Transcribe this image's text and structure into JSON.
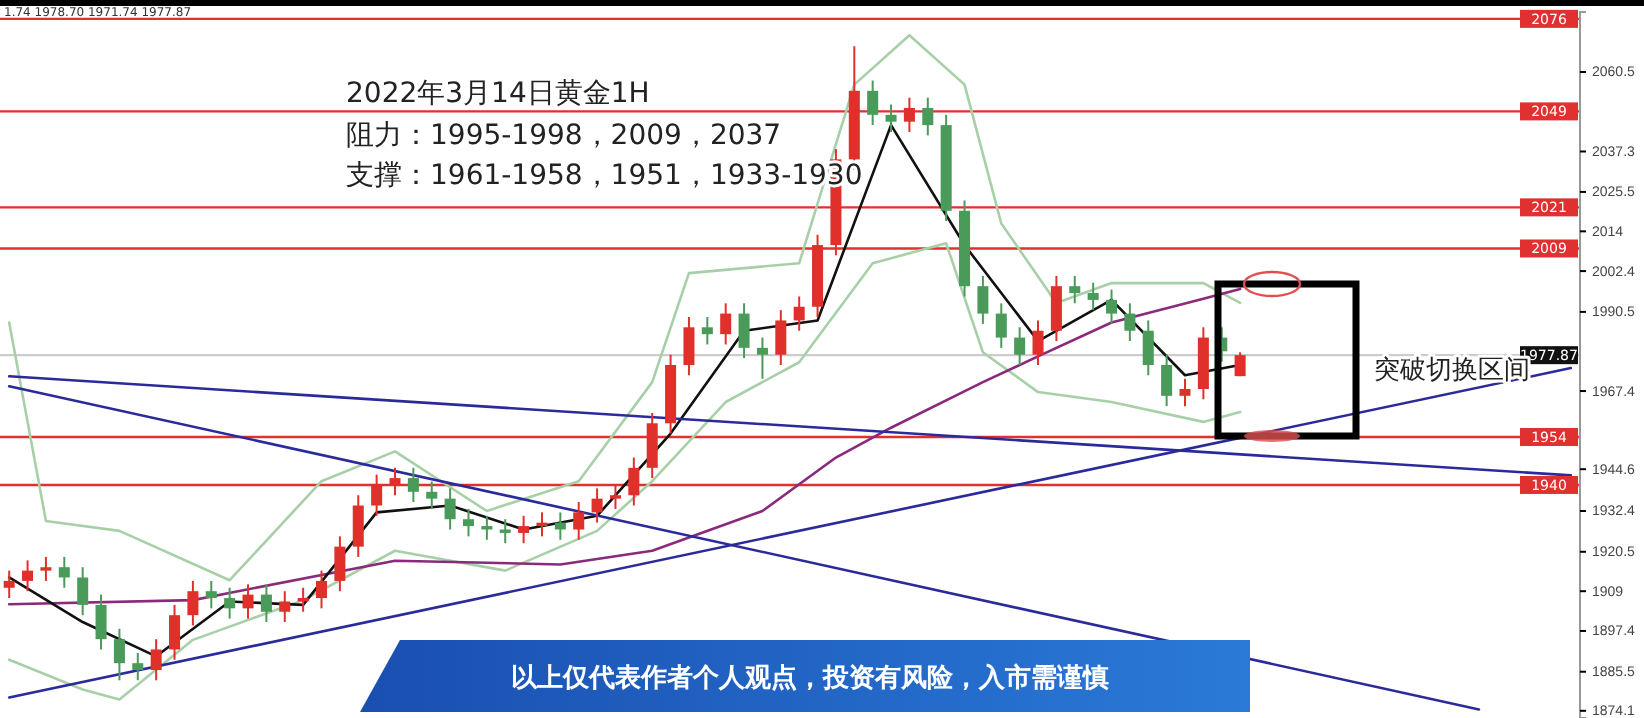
{
  "chart_data": {
    "type": "candlestick",
    "title": "2022年3月14日黄金1H",
    "annotations": [
      "1.74 1978.70 1971.74 1977.87",
      "阻力：1995-1998，2009，2037",
      "支撑：1961-1958，1951，1933-1930",
      "突破切换区间",
      "以上仅代表作者个人观点，投资有风险，入市需谨慎"
    ],
    "categories": [
      null,
      null,
      null,
      null,
      null,
      null,
      null,
      null,
      null,
      null,
      null,
      null,
      null,
      null,
      null,
      null,
      null,
      null,
      null,
      null,
      null,
      null,
      null,
      null,
      null,
      null,
      null,
      null,
      null,
      null,
      null,
      null,
      null,
      null,
      null,
      null,
      null,
      null,
      null,
      null,
      null,
      null,
      null,
      null,
      null,
      null,
      null,
      null,
      null,
      null,
      null,
      null,
      null,
      null,
      null,
      null,
      null,
      null,
      null,
      null,
      null,
      null,
      null,
      null,
      null,
      null,
      null,
      null,
      null,
      null,
      null,
      null,
      null,
      null,
      null,
      null,
      null,
      null,
      null,
      null,
      null,
      null,
      null,
      null,
      null,
      null
    ],
    "ohlc": [
      [
        1910,
        1915,
        1907,
        1912
      ],
      [
        1912,
        1918,
        1909,
        1915
      ],
      [
        1915,
        1919,
        1912,
        1916
      ],
      [
        1916,
        1919,
        1910,
        1913
      ],
      [
        1913,
        1916,
        1902,
        1905
      ],
      [
        1905,
        1908,
        1892,
        1895
      ],
      [
        1895,
        1898,
        1883,
        1888
      ],
      [
        1888,
        1891,
        1883,
        1886
      ],
      [
        1886,
        1895,
        1883,
        1892
      ],
      [
        1892,
        1905,
        1889,
        1902
      ],
      [
        1902,
        1912,
        1899,
        1909
      ],
      [
        1909,
        1912,
        1904,
        1907
      ],
      [
        1907,
        1910,
        1901,
        1904
      ],
      [
        1904,
        1911,
        1901,
        1908
      ],
      [
        1908,
        1911,
        1900,
        1903
      ],
      [
        1903,
        1909,
        1900,
        1906
      ],
      [
        1906,
        1910,
        1903,
        1907
      ],
      [
        1907,
        1915,
        1904,
        1912
      ],
      [
        1912,
        1925,
        1909,
        1922
      ],
      [
        1922,
        1937,
        1919,
        1934
      ],
      [
        1934,
        1943,
        1931,
        1940
      ],
      [
        1940,
        1945,
        1937,
        1942
      ],
      [
        1942,
        1945,
        1935,
        1938
      ],
      [
        1938,
        1941,
        1933,
        1936
      ],
      [
        1936,
        1939,
        1927,
        1930
      ],
      [
        1930,
        1933,
        1925,
        1928
      ],
      [
        1928,
        1931,
        1924,
        1927
      ],
      [
        1927,
        1930,
        1923,
        1926
      ],
      [
        1926,
        1931,
        1923,
        1928
      ],
      [
        1928,
        1932,
        1925,
        1929
      ],
      [
        1929,
        1932,
        1924,
        1927
      ],
      [
        1927,
        1935,
        1924,
        1932
      ],
      [
        1932,
        1939,
        1929,
        1936
      ],
      [
        1936,
        1940,
        1933,
        1937
      ],
      [
        1937,
        1948,
        1934,
        1945
      ],
      [
        1945,
        1961,
        1942,
        1958
      ],
      [
        1958,
        1978,
        1955,
        1975
      ],
      [
        1975,
        1989,
        1972,
        1986
      ],
      [
        1986,
        1989,
        1981,
        1984
      ],
      [
        1984,
        1993,
        1981,
        1990
      ],
      [
        1990,
        1993,
        1977,
        1980
      ],
      [
        1980,
        1983,
        1971,
        1978
      ],
      [
        1978,
        1991,
        1975,
        1988
      ],
      [
        1988,
        1995,
        1985,
        1992
      ],
      [
        1992,
        2013,
        1989,
        2010
      ],
      [
        2010,
        2038,
        2007,
        2035
      ],
      [
        2035,
        2068,
        2032,
        2055
      ],
      [
        2055,
        2058,
        2045,
        2048
      ],
      [
        2048,
        2051,
        2043,
        2046
      ],
      [
        2046,
        2053,
        2043,
        2050
      ],
      [
        2050,
        2053,
        2042,
        2045
      ],
      [
        2045,
        2048,
        2017,
        2020
      ],
      [
        2020,
        2023,
        1995,
        1998
      ],
      [
        1998,
        2001,
        1987,
        1990
      ],
      [
        1990,
        1993,
        1980,
        1983
      ],
      [
        1983,
        1986,
        1975,
        1978
      ],
      [
        1978,
        1988,
        1975,
        1985
      ],
      [
        1985,
        2001,
        1982,
        1998
      ],
      [
        1998,
        2001,
        1993,
        1996
      ],
      [
        1996,
        1999,
        1991,
        1994
      ],
      [
        1994,
        1997,
        1987,
        1990
      ],
      [
        1990,
        1993,
        1982,
        1985
      ],
      [
        1985,
        1988,
        1972,
        1975
      ],
      [
        1975,
        1978,
        1963,
        1966
      ],
      [
        1966,
        1971,
        1963,
        1968
      ],
      [
        1968,
        1986,
        1965,
        1983
      ],
      [
        1983,
        1986,
        1976,
        1979
      ],
      [
        1971.74,
        1978.7,
        1971.74,
        1977.87
      ],
      null,
      null,
      null,
      null,
      null,
      null,
      null,
      null,
      null,
      null,
      null,
      null,
      null,
      null,
      null,
      null,
      null,
      null
    ],
    "colors": [
      "#e0302c",
      "#e0302c",
      "#e0302c",
      "#4a9a5a",
      "#4a9a5a",
      "#4a9a5a",
      "#4a9a5a",
      "#4a9a5a",
      "#e0302c",
      "#e0302c",
      "#e0302c",
      "#4a9a5a",
      "#4a9a5a",
      "#e0302c",
      "#4a9a5a",
      "#e0302c",
      "#e0302c",
      "#e0302c",
      "#e0302c",
      "#e0302c",
      "#e0302c",
      "#e0302c",
      "#4a9a5a",
      "#4a9a5a",
      "#4a9a5a",
      "#4a9a5a",
      "#4a9a5a",
      "#4a9a5a",
      "#e0302c",
      "#e0302c",
      "#4a9a5a",
      "#e0302c",
      "#e0302c",
      "#e0302c",
      "#e0302c",
      "#e0302c",
      "#e0302c",
      "#e0302c",
      "#4a9a5a",
      "#e0302c",
      "#4a9a5a",
      "#4a9a5a",
      "#e0302c",
      "#e0302c",
      "#e0302c",
      "#e0302c",
      "#e0302c",
      "#4a9a5a",
      "#4a9a5a",
      "#e0302c",
      "#4a9a5a",
      "#4a9a5a",
      "#4a9a5a",
      "#4a9a5a",
      "#4a9a5a",
      "#4a9a5a",
      "#e0302c",
      "#e0302c",
      "#4a9a5a",
      "#4a9a5a",
      "#4a9a5a",
      "#4a9a5a",
      "#4a9a5a",
      "#4a9a5a",
      "#e0302c",
      "#e0302c",
      "#4a9a5a",
      "#e0302c",
      null,
      null,
      null,
      null,
      null,
      null,
      null,
      null,
      null,
      null,
      null,
      null,
      null,
      null,
      null,
      null,
      null,
      null
    ],
    "series": [
      {
        "type": "line",
        "color": "#a8d0a8",
        "values": [
          1987.4,
          null,
          1929.5,
          null,
          null,
          null,
          1926.6,
          null,
          null,
          null,
          null,
          null,
          1912.2,
          null,
          null,
          null,
          null,
          1941.1,
          null,
          null,
          null,
          1949.8,
          null,
          null,
          null,
          null,
          1932.4,
          null,
          null,
          null,
          null,
          1941.1,
          null,
          null,
          null,
          1970.0,
          null,
          2001.8,
          null,
          null,
          null,
          null,
          null,
          2004.7,
          null,
          null,
          2056.8,
          null,
          null,
          2071.2,
          null,
          null,
          2056.8,
          null,
          2016.3,
          null,
          null,
          1993.1,
          null,
          null,
          1998.9,
          null,
          null,
          null,
          null,
          1998.9,
          null,
          1993.1,
          null,
          null,
          null,
          null,
          null,
          null,
          null,
          null,
          null,
          null,
          null,
          null,
          null,
          null,
          null,
          null,
          null,
          null
        ]
      },
      {
        "type": "line",
        "color": "#a8d0a8",
        "values": [
          1889.0,
          null,
          null,
          null,
          1880.3,
          null,
          1877.4,
          null,
          null,
          null,
          1894.8,
          null,
          null,
          null,
          null,
          null,
          1906.4,
          null,
          null,
          null,
          null,
          1920.8,
          null,
          null,
          null,
          null,
          null,
          1915.0,
          null,
          null,
          null,
          null,
          1926.6,
          null,
          null,
          1941.1,
          null,
          null,
          null,
          1964.2,
          null,
          null,
          null,
          1975.8,
          null,
          null,
          null,
          2004.7,
          null,
          null,
          null,
          2010.5,
          null,
          1978.7,
          null,
          null,
          1967.1,
          null,
          null,
          null,
          1964.2,
          null,
          null,
          null,
          null,
          1958.4,
          null,
          1961.3,
          null,
          null,
          null,
          null,
          null,
          null,
          null,
          null,
          null,
          null,
          null,
          null,
          null,
          null,
          null,
          null,
          null,
          null
        ]
      },
      {
        "type": "line",
        "color": "#8a2a7a",
        "values": [
          1905.2,
          null,
          null,
          null,
          null,
          null,
          null,
          null,
          null,
          null,
          1906.4,
          null,
          null,
          null,
          null,
          null,
          null,
          null,
          null,
          null,
          null,
          1917.9,
          null,
          null,
          null,
          null,
          null,
          null,
          null,
          null,
          1916.8,
          null,
          null,
          null,
          null,
          1920.8,
          null,
          null,
          null,
          null,
          null,
          1932.4,
          null,
          null,
          null,
          1948.0,
          null,
          null,
          1956.7,
          null,
          null,
          null,
          null,
          1970.0,
          null,
          null,
          1977.5,
          null,
          null,
          null,
          1987.4,
          null,
          null,
          null,
          null,
          1994.3,
          null,
          1997.2,
          null,
          null,
          null,
          null,
          null,
          null,
          null,
          null,
          null,
          null,
          null,
          null,
          null,
          null,
          null,
          null,
          null,
          null
        ]
      },
      {
        "type": "line",
        "color": "#111111",
        "values": [
          1913,
          null,
          null,
          null,
          1900,
          null,
          null,
          null,
          1890,
          null,
          null,
          null,
          1906,
          null,
          null,
          null,
          1905,
          null,
          null,
          null,
          1932,
          null,
          null,
          null,
          1934,
          null,
          null,
          null,
          1927,
          null,
          null,
          null,
          1931,
          null,
          null,
          null,
          1955,
          null,
          null,
          null,
          1985,
          null,
          null,
          null,
          1988,
          null,
          null,
          null,
          2045,
          null,
          null,
          null,
          2010,
          null,
          null,
          null,
          1982,
          null,
          null,
          null,
          1994,
          null,
          null,
          null,
          1972,
          null,
          null,
          1975,
          null,
          null,
          null,
          null,
          null,
          null,
          null,
          null,
          null,
          null,
          null,
          null,
          null,
          null,
          null,
          null,
          null,
          null
        ]
      },
      {
        "type": "line",
        "color": "#2a2a9a",
        "values": [
          1971.7,
          null,
          null,
          null,
          null,
          null,
          null,
          null,
          null,
          null,
          null,
          null,
          null,
          null,
          null,
          null,
          null,
          null,
          null,
          null,
          null,
          null,
          null,
          null,
          null,
          null,
          null,
          null,
          null,
          null,
          null,
          null,
          null,
          null,
          null,
          null,
          null,
          null,
          null,
          null,
          null,
          null,
          null,
          null,
          null,
          null,
          null,
          null,
          null,
          null,
          null,
          null,
          null,
          null,
          null,
          null,
          null,
          null,
          null,
          null,
          null,
          null,
          null,
          null,
          null,
          null,
          null,
          null,
          null,
          null,
          null,
          null,
          null,
          null,
          null,
          null,
          null,
          null,
          null,
          null,
          null,
          null,
          null,
          null,
          null,
          1942.8
        ]
      },
      {
        "type": "line",
        "color": "#2a2a9a",
        "values": [
          1968.8,
          null,
          null,
          null,
          null,
          null,
          null,
          null,
          null,
          null,
          null,
          null,
          null,
          null,
          null,
          null,
          null,
          null,
          null,
          null,
          null,
          null,
          null,
          null,
          null,
          null,
          null,
          null,
          null,
          null,
          null,
          null,
          null,
          null,
          null,
          null,
          null,
          null,
          null,
          null,
          null,
          null,
          null,
          null,
          null,
          null,
          null,
          null,
          null,
          null,
          null,
          null,
          null,
          null,
          null,
          null,
          null,
          null,
          null,
          null,
          null,
          null,
          null,
          null,
          null,
          null,
          null,
          null,
          null,
          null,
          null,
          null,
          null,
          null,
          null,
          null,
          null,
          null,
          null,
          null,
          1874.5,
          null,
          null,
          null,
          null,
          null
        ]
      },
      {
        "type": "line",
        "color": "#2a2a9a",
        "values": [
          1878.0,
          null,
          null,
          null,
          null,
          null,
          null,
          null,
          null,
          null,
          null,
          null,
          null,
          null,
          null,
          null,
          null,
          null,
          null,
          null,
          null,
          null,
          null,
          null,
          null,
          null,
          null,
          null,
          null,
          null,
          null,
          null,
          null,
          null,
          null,
          null,
          null,
          null,
          null,
          null,
          null,
          null,
          null,
          null,
          null,
          null,
          null,
          null,
          null,
          null,
          null,
          null,
          null,
          null,
          null,
          null,
          null,
          null,
          null,
          null,
          null,
          null,
          null,
          null,
          null,
          null,
          null,
          null,
          null,
          null,
          null,
          null,
          null,
          null,
          null,
          null,
          null,
          null,
          null,
          null,
          null,
          null,
          null,
          null,
          null,
          1974.1
        ]
      }
    ],
    "ylim": [
      1872,
      2078
    ],
    "yticks": [
      2060.5,
      2037.3,
      2025.5,
      2014.0,
      2002.4,
      1990.5,
      1967.4,
      1944.6,
      1932.4,
      1920.5,
      1909.0,
      1897.4,
      1885.5,
      1874.1
    ],
    "tick_labels": "y",
    "ref_lines": [
      {
        "axis": "y",
        "value": 2076,
        "label": "2076",
        "color": "#e03030"
      },
      {
        "axis": "y",
        "value": 2049,
        "label": "2049",
        "color": "#e03030"
      },
      {
        "axis": "y",
        "value": 2021,
        "label": "2021",
        "color": "#e03030"
      },
      {
        "axis": "y",
        "value": 2009,
        "label": "2009",
        "color": "#e03030"
      },
      {
        "axis": "y",
        "value": 1977.87,
        "label": "1977.87",
        "color": "#cccccc"
      },
      {
        "axis": "y",
        "value": 1954,
        "label": "1954",
        "color": "#e03030"
      },
      {
        "axis": "y",
        "value": 1940,
        "label": "1940",
        "color": "#e03030"
      }
    ]
  }
}
